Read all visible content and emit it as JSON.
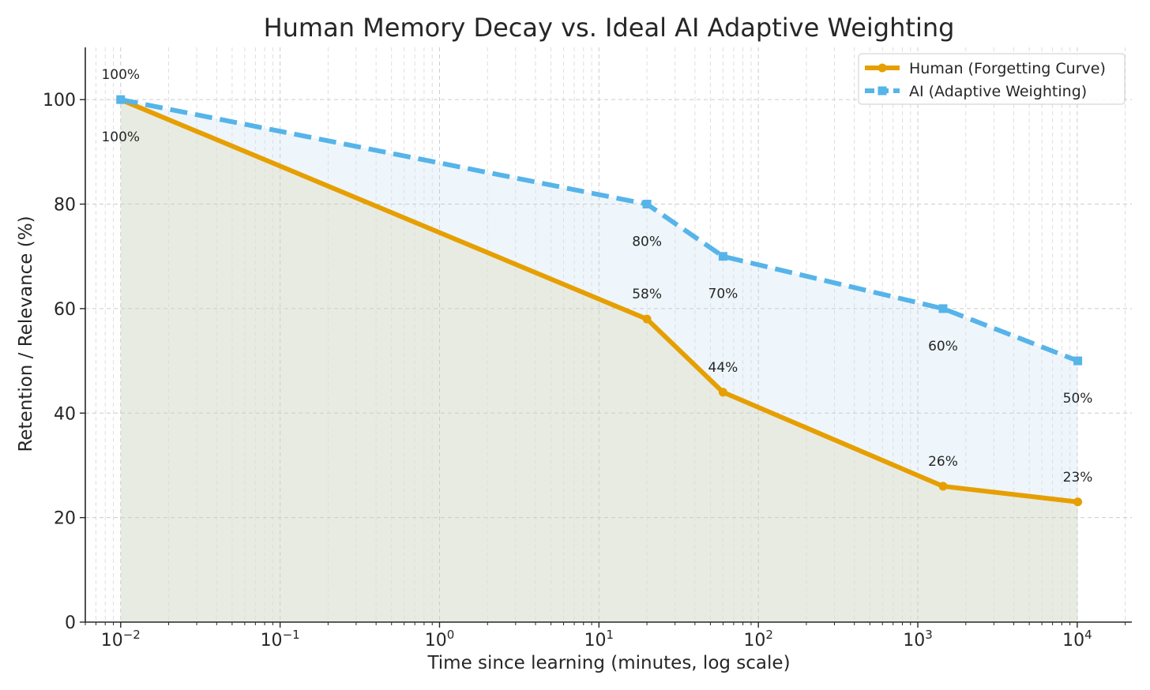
{
  "chart_data": {
    "type": "line",
    "title": "Human Memory Decay vs. Ideal AI Adaptive Weighting",
    "xlabel": "Time since learning (minutes, log scale)",
    "ylabel": "Retention / Relevance (%)",
    "x_scale": "log",
    "xlim": [
      0.006,
      22000
    ],
    "ylim": [
      0,
      110
    ],
    "x": [
      0.01,
      20,
      60,
      1440,
      10080
    ],
    "x_ticks": [
      {
        "value": 0.01,
        "base": "10",
        "exp": "−2"
      },
      {
        "value": 0.1,
        "base": "10",
        "exp": "−1"
      },
      {
        "value": 1,
        "base": "10",
        "exp": "0"
      },
      {
        "value": 10,
        "base": "10",
        "exp": "1"
      },
      {
        "value": 100,
        "base": "10",
        "exp": "2"
      },
      {
        "value": 1000,
        "base": "10",
        "exp": "3"
      },
      {
        "value": 10000,
        "base": "10",
        "exp": "4"
      }
    ],
    "y_ticks": [
      0,
      20,
      40,
      60,
      80,
      100
    ],
    "grid": true,
    "legend_position": "top-right",
    "series": [
      {
        "name": "Human (Forgetting Curve)",
        "values": [
          100,
          58,
          44,
          26,
          23
        ],
        "labels": [
          "100%",
          "58%",
          "44%",
          "26%",
          "23%"
        ],
        "color": "#e69f00",
        "marker": "circle",
        "line_style": "solid",
        "fill": "#e8ebe2"
      },
      {
        "name": "AI (Adaptive Weighting)",
        "values": [
          100,
          80,
          70,
          60,
          50
        ],
        "labels": [
          "100%",
          "80%",
          "70%",
          "60%",
          "50%"
        ],
        "color": "#56b4e9",
        "marker": "square",
        "line_style": "dashed",
        "fill": "#eef6fb"
      }
    ]
  }
}
